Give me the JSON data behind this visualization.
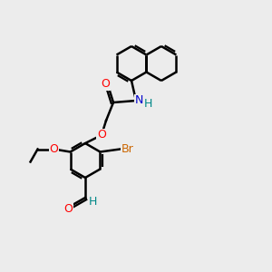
{
  "bg_color": "#ececec",
  "bond_color": "#000000",
  "bond_width": 1.5,
  "atom_colors": {
    "O": "#ff0000",
    "N": "#0000cc",
    "Br": "#cc6600",
    "C": "#000000",
    "H": "#000000"
  },
  "font_size_atom": 8,
  "font_size_small": 7
}
